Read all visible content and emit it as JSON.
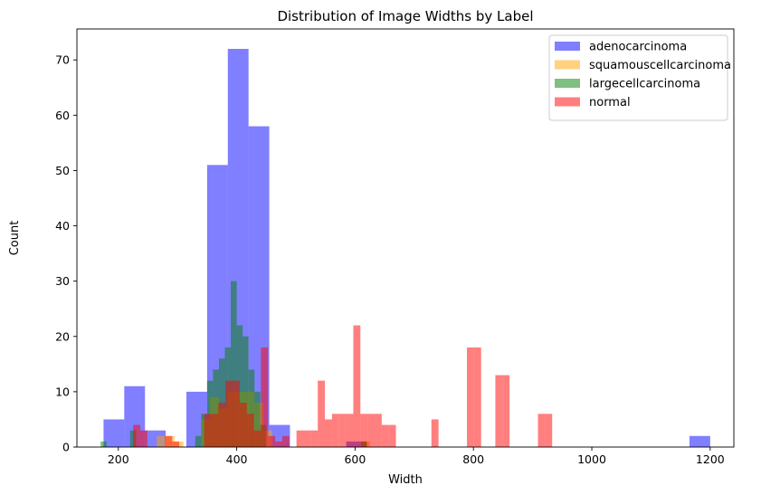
{
  "chart_data": {
    "type": "histogram",
    "title": "Distribution of Image Widths by Label",
    "xlabel": "Width",
    "ylabel": "Count",
    "xlim": [
      130,
      1240
    ],
    "ylim": [
      0,
      75.6
    ],
    "xticks": [
      200,
      400,
      600,
      800,
      1000,
      1200
    ],
    "yticks": [
      0,
      10,
      20,
      30,
      40,
      50,
      60,
      70
    ],
    "legend_position": "top-right",
    "grid": false,
    "series": [
      {
        "name": "adenocarcinoma",
        "color": "#0000ff",
        "opacity": 0.5,
        "bins": [
          {
            "x0": 175,
            "x1": 210,
            "count": 5
          },
          {
            "x0": 210,
            "x1": 245,
            "count": 11
          },
          {
            "x0": 245,
            "x1": 280,
            "count": 3
          },
          {
            "x0": 315,
            "x1": 350,
            "count": 10
          },
          {
            "x0": 350,
            "x1": 385,
            "count": 51
          },
          {
            "x0": 385,
            "x1": 420,
            "count": 72
          },
          {
            "x0": 420,
            "x1": 455,
            "count": 58
          },
          {
            "x0": 455,
            "x1": 490,
            "count": 4
          },
          {
            "x0": 585,
            "x1": 620,
            "count": 1
          },
          {
            "x0": 1165,
            "x1": 1200,
            "count": 2
          }
        ]
      },
      {
        "name": "squamouscellcarcinoma",
        "color": "#ffa500",
        "opacity": 0.5,
        "bins": [
          {
            "x0": 265,
            "x1": 280,
            "count": 2
          },
          {
            "x0": 280,
            "x1": 295,
            "count": 2
          },
          {
            "x0": 295,
            "x1": 310,
            "count": 1
          },
          {
            "x0": 340,
            "x1": 355,
            "count": 5
          },
          {
            "x0": 355,
            "x1": 370,
            "count": 9
          },
          {
            "x0": 370,
            "x1": 385,
            "count": 7
          },
          {
            "x0": 385,
            "x1": 400,
            "count": 10
          },
          {
            "x0": 400,
            "x1": 415,
            "count": 10
          },
          {
            "x0": 415,
            "x1": 430,
            "count": 10
          },
          {
            "x0": 430,
            "x1": 445,
            "count": 8
          },
          {
            "x0": 445,
            "x1": 460,
            "count": 3
          },
          {
            "x0": 610,
            "x1": 625,
            "count": 1
          }
        ]
      },
      {
        "name": "largecellcarcinoma",
        "color": "#008000",
        "opacity": 0.5,
        "bins": [
          {
            "x0": 170,
            "x1": 180,
            "count": 1
          },
          {
            "x0": 220,
            "x1": 230,
            "count": 3
          },
          {
            "x0": 330,
            "x1": 340,
            "count": 2
          },
          {
            "x0": 340,
            "x1": 350,
            "count": 6
          },
          {
            "x0": 350,
            "x1": 360,
            "count": 12
          },
          {
            "x0": 360,
            "x1": 370,
            "count": 14
          },
          {
            "x0": 370,
            "x1": 380,
            "count": 16
          },
          {
            "x0": 380,
            "x1": 390,
            "count": 18
          },
          {
            "x0": 390,
            "x1": 400,
            "count": 30
          },
          {
            "x0": 400,
            "x1": 410,
            "count": 22
          },
          {
            "x0": 410,
            "x1": 420,
            "count": 20
          },
          {
            "x0": 420,
            "x1": 430,
            "count": 14
          },
          {
            "x0": 430,
            "x1": 440,
            "count": 10
          },
          {
            "x0": 440,
            "x1": 450,
            "count": 4
          },
          {
            "x0": 610,
            "x1": 620,
            "count": 1
          }
        ]
      },
      {
        "name": "normal",
        "color": "#ff0000",
        "opacity": 0.5,
        "bins": [
          {
            "x0": 225,
            "x1": 237,
            "count": 4
          },
          {
            "x0": 237,
            "x1": 249,
            "count": 3
          },
          {
            "x0": 279,
            "x1": 291,
            "count": 2
          },
          {
            "x0": 291,
            "x1": 303,
            "count": 1
          },
          {
            "x0": 345,
            "x1": 357,
            "count": 6
          },
          {
            "x0": 357,
            "x1": 369,
            "count": 6
          },
          {
            "x0": 369,
            "x1": 381,
            "count": 8
          },
          {
            "x0": 381,
            "x1": 393,
            "count": 12
          },
          {
            "x0": 393,
            "x1": 405,
            "count": 12
          },
          {
            "x0": 405,
            "x1": 417,
            "count": 8
          },
          {
            "x0": 417,
            "x1": 429,
            "count": 6
          },
          {
            "x0": 429,
            "x1": 441,
            "count": 3
          },
          {
            "x0": 441,
            "x1": 453,
            "count": 18
          },
          {
            "x0": 453,
            "x1": 465,
            "count": 2
          },
          {
            "x0": 465,
            "x1": 477,
            "count": 1
          },
          {
            "x0": 477,
            "x1": 489,
            "count": 2
          },
          {
            "x0": 501,
            "x1": 513,
            "count": 3
          },
          {
            "x0": 513,
            "x1": 525,
            "count": 3
          },
          {
            "x0": 525,
            "x1": 537,
            "count": 3
          },
          {
            "x0": 537,
            "x1": 549,
            "count": 12
          },
          {
            "x0": 549,
            "x1": 561,
            "count": 5
          },
          {
            "x0": 561,
            "x1": 573,
            "count": 6
          },
          {
            "x0": 573,
            "x1": 585,
            "count": 6
          },
          {
            "x0": 585,
            "x1": 597,
            "count": 6
          },
          {
            "x0": 597,
            "x1": 609,
            "count": 22
          },
          {
            "x0": 609,
            "x1": 621,
            "count": 6
          },
          {
            "x0": 621,
            "x1": 633,
            "count": 6
          },
          {
            "x0": 633,
            "x1": 645,
            "count": 6
          },
          {
            "x0": 645,
            "x1": 657,
            "count": 4
          },
          {
            "x0": 657,
            "x1": 669,
            "count": 4
          },
          {
            "x0": 729,
            "x1": 741,
            "count": 5
          },
          {
            "x0": 789,
            "x1": 801,
            "count": 18
          },
          {
            "x0": 801,
            "x1": 813,
            "count": 18
          },
          {
            "x0": 837,
            "x1": 849,
            "count": 13
          },
          {
            "x0": 849,
            "x1": 861,
            "count": 13
          },
          {
            "x0": 909,
            "x1": 921,
            "count": 6
          },
          {
            "x0": 921,
            "x1": 933,
            "count": 6
          }
        ]
      }
    ]
  }
}
